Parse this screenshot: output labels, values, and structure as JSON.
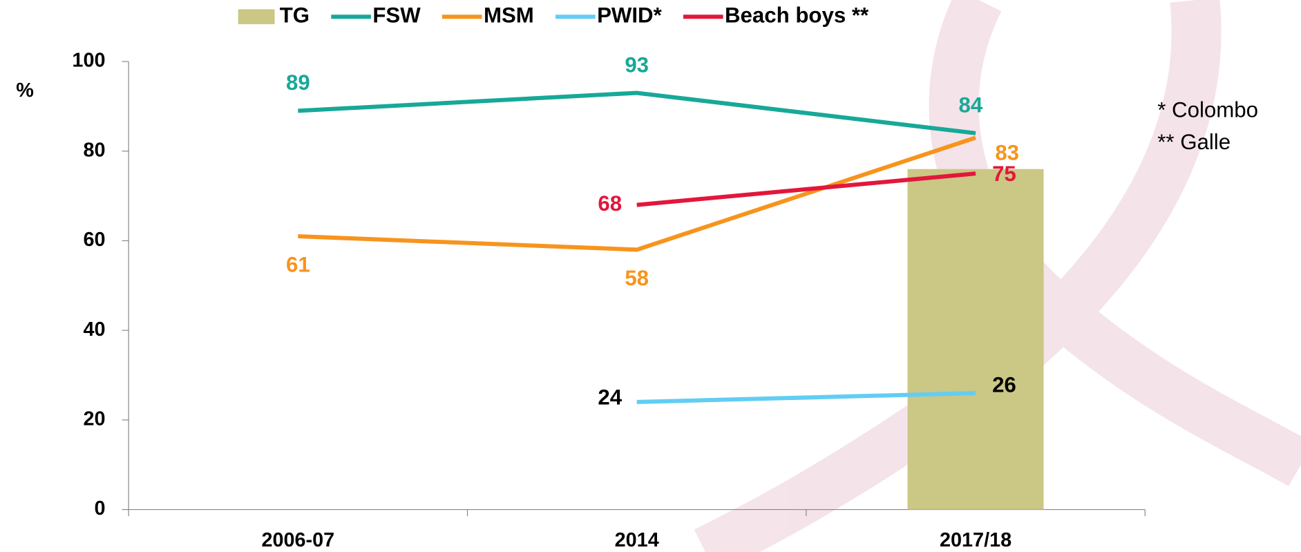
{
  "chart_data": {
    "type": "line",
    "y_label": "%",
    "categories": [
      "2006-07",
      "2014",
      "2017/18"
    ],
    "ylim": [
      0,
      100
    ],
    "yticks": [
      0,
      20,
      40,
      60,
      80,
      100
    ],
    "series": [
      {
        "name": "TG",
        "type": "bar",
        "color": "#cbc785",
        "values": [
          null,
          null,
          76
        ]
      },
      {
        "name": "FSW",
        "color": "#17a898",
        "values": [
          89,
          93,
          84
        ]
      },
      {
        "name": "MSM",
        "color": "#f7941d",
        "values": [
          61,
          58,
          83
        ]
      },
      {
        "name": "PWID*",
        "color": "#62cdf3",
        "values": [
          null,
          24,
          26
        ]
      },
      {
        "name": "Beach boys **",
        "color": "#e2173b",
        "values": [
          null,
          68,
          75
        ]
      }
    ],
    "annotations": [
      "*  Colombo",
      "** Galle"
    ]
  }
}
